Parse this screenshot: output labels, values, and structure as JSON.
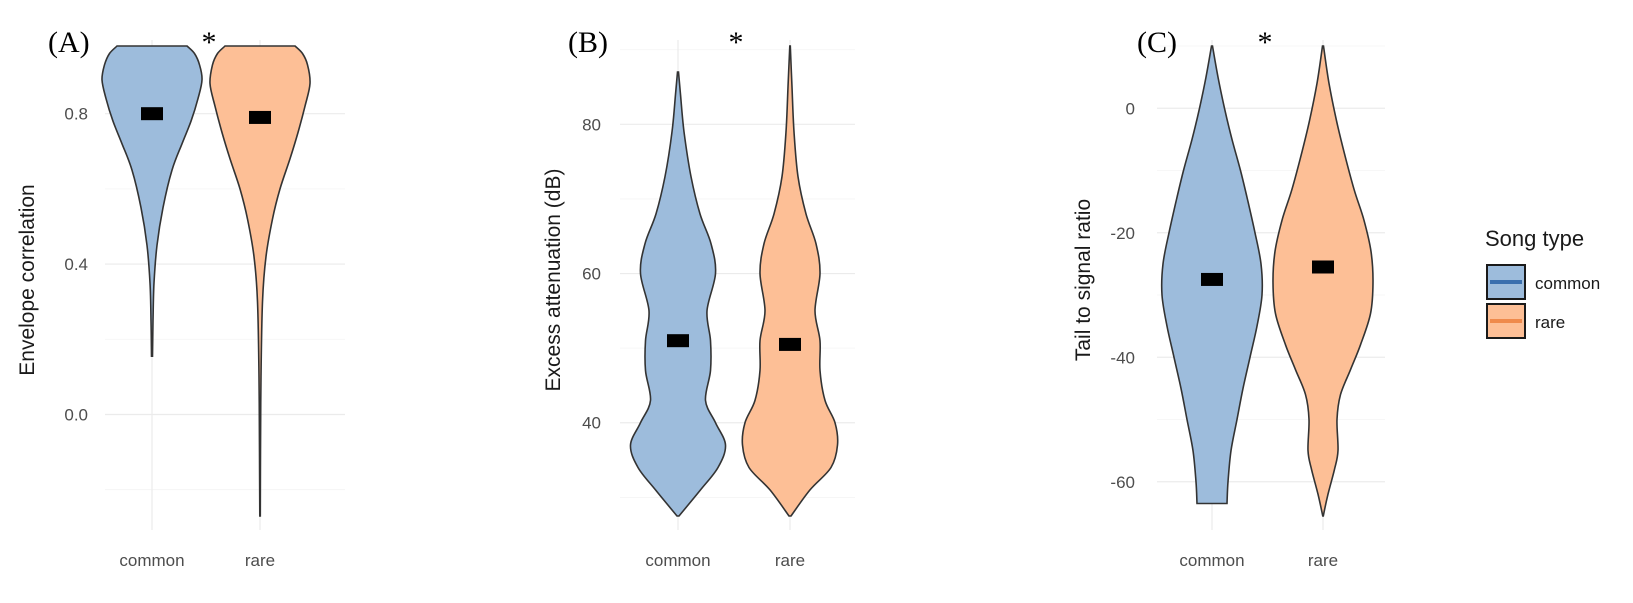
{
  "legend": {
    "title": "Song type",
    "items": [
      {
        "label": "common",
        "fill": "#9dbcdc",
        "key_color": "#3a6fae"
      },
      {
        "label": "rare",
        "fill": "#fdbf96",
        "key_color": "#ef8a4c"
      }
    ]
  },
  "colors": {
    "common": "#9dbcdc",
    "rare": "#fdbf96",
    "outline": "#333333",
    "grid": "#ebebeb",
    "median": "#000000"
  },
  "chart_data": [
    {
      "type": "violin",
      "panel": "(A)",
      "significance": "*",
      "ylabel": "Envelope correlation",
      "xlabel": "",
      "categories": [
        "common",
        "rare"
      ],
      "ylim": [
        -0.27,
        0.98
      ],
      "yticks": [
        0.0,
        0.4,
        0.8
      ],
      "ytick_labels": [
        "0.0",
        "0.4",
        "0.8"
      ],
      "grid": true,
      "series": [
        {
          "name": "common",
          "median": 0.8,
          "min": 0.155,
          "max": 0.98,
          "profile": [
            [
              0.155,
              0.01
            ],
            [
              0.25,
              0.02
            ],
            [
              0.35,
              0.04
            ],
            [
              0.45,
              0.1
            ],
            [
              0.55,
              0.22
            ],
            [
              0.65,
              0.4
            ],
            [
              0.72,
              0.6
            ],
            [
              0.78,
              0.78
            ],
            [
              0.84,
              0.92
            ],
            [
              0.89,
              1.0
            ],
            [
              0.93,
              0.95
            ],
            [
              0.96,
              0.85
            ],
            [
              0.98,
              0.7
            ]
          ]
        },
        {
          "name": "rare",
          "median": 0.79,
          "min": -0.27,
          "max": 0.98,
          "profile": [
            [
              -0.27,
              0.005
            ],
            [
              -0.1,
              0.01
            ],
            [
              0.1,
              0.02
            ],
            [
              0.3,
              0.05
            ],
            [
              0.42,
              0.12
            ],
            [
              0.52,
              0.25
            ],
            [
              0.6,
              0.4
            ],
            [
              0.68,
              0.6
            ],
            [
              0.75,
              0.76
            ],
            [
              0.82,
              0.9
            ],
            [
              0.88,
              1.0
            ],
            [
              0.93,
              0.95
            ],
            [
              0.96,
              0.85
            ],
            [
              0.98,
              0.7
            ]
          ]
        }
      ]
    },
    {
      "type": "violin",
      "panel": "(B)",
      "significance": "*",
      "ylabel": "Excess attenuation (dB)",
      "xlabel": "",
      "categories": [
        "common",
        "rare"
      ],
      "ylim": [
        27.5,
        90.5
      ],
      "yticks": [
        40,
        60,
        80
      ],
      "ytick_labels": [
        "40",
        "60",
        "80"
      ],
      "grid": true,
      "series": [
        {
          "name": "common",
          "median": 51,
          "min": 27.5,
          "max": 87,
          "profile": [
            [
              27.5,
              0.02
            ],
            [
              31,
              0.45
            ],
            [
              34,
              0.8
            ],
            [
              37,
              0.95
            ],
            [
              40,
              0.75
            ],
            [
              43,
              0.55
            ],
            [
              47,
              0.65
            ],
            [
              51,
              0.65
            ],
            [
              55,
              0.58
            ],
            [
              60,
              0.75
            ],
            [
              64,
              0.66
            ],
            [
              68,
              0.44
            ],
            [
              73,
              0.26
            ],
            [
              79,
              0.12
            ],
            [
              84,
              0.05
            ],
            [
              87,
              0.01
            ]
          ]
        },
        {
          "name": "rare",
          "median": 50.5,
          "min": 27.5,
          "max": 90.5,
          "profile": [
            [
              27.5,
              0.02
            ],
            [
              31,
              0.4
            ],
            [
              34,
              0.82
            ],
            [
              37,
              0.95
            ],
            [
              40,
              0.9
            ],
            [
              43,
              0.7
            ],
            [
              47,
              0.6
            ],
            [
              51,
              0.6
            ],
            [
              55,
              0.5
            ],
            [
              60,
              0.6
            ],
            [
              64,
              0.52
            ],
            [
              68,
              0.32
            ],
            [
              73,
              0.16
            ],
            [
              79,
              0.08
            ],
            [
              85,
              0.04
            ],
            [
              90.5,
              0.005
            ]
          ]
        }
      ]
    },
    {
      "type": "violin",
      "panel": "(C)",
      "significance": "*",
      "ylabel": "Tail to signal ratio",
      "xlabel": "",
      "categories": [
        "common",
        "rare"
      ],
      "ylim": [
        -65.5,
        10
      ],
      "yticks": [
        -60,
        -40,
        -20,
        0
      ],
      "ytick_labels": [
        "-60",
        "-40",
        "-20",
        "0"
      ],
      "grid": true,
      "series": [
        {
          "name": "common",
          "median": -27.5,
          "min": -63.5,
          "max": 10,
          "profile": [
            [
              -63.5,
              0.3
            ],
            [
              -60,
              0.32
            ],
            [
              -55,
              0.38
            ],
            [
              -50,
              0.5
            ],
            [
              -45,
              0.62
            ],
            [
              -40,
              0.76
            ],
            [
              -35,
              0.9
            ],
            [
              -30,
              1.0
            ],
            [
              -25,
              0.98
            ],
            [
              -20,
              0.86
            ],
            [
              -15,
              0.72
            ],
            [
              -10,
              0.57
            ],
            [
              -5,
              0.4
            ],
            [
              0,
              0.25
            ],
            [
              5,
              0.12
            ],
            [
              10,
              0.01
            ]
          ]
        },
        {
          "name": "rare",
          "median": -25.5,
          "min": -65.5,
          "max": 10,
          "profile": [
            [
              -65.5,
              0.005
            ],
            [
              -62,
              0.1
            ],
            [
              -58,
              0.23
            ],
            [
              -55,
              0.3
            ],
            [
              -50,
              0.28
            ],
            [
              -46,
              0.35
            ],
            [
              -42,
              0.55
            ],
            [
              -38,
              0.75
            ],
            [
              -33,
              0.95
            ],
            [
              -28,
              1.0
            ],
            [
              -23,
              0.96
            ],
            [
              -18,
              0.82
            ],
            [
              -13,
              0.62
            ],
            [
              -7,
              0.42
            ],
            [
              -2,
              0.27
            ],
            [
              4,
              0.12
            ],
            [
              10,
              0.01
            ]
          ]
        }
      ]
    }
  ]
}
